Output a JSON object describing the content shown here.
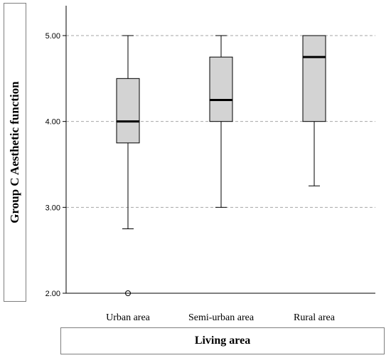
{
  "chart_data": {
    "type": "boxplot",
    "xlabel": "Living area",
    "ylabel": "Group C Aesthetic function",
    "ylim": [
      2.0,
      5.0
    ],
    "yticks": [
      "2.00",
      "3.00",
      "4.00",
      "5.00"
    ],
    "grid": "horizontal dashed at 3.00, 4.00, 5.00",
    "categories": [
      "Urban area",
      "Semi-urban area",
      "Rural area"
    ],
    "boxes": [
      {
        "category": "Urban area",
        "whisker_low": 2.75,
        "q1": 3.75,
        "median": 4.0,
        "q3": 4.5,
        "whisker_high": 5.0,
        "outliers": [
          2.0
        ]
      },
      {
        "category": "Semi-urban area",
        "whisker_low": 3.0,
        "q1": 4.0,
        "median": 4.25,
        "q3": 4.75,
        "whisker_high": 5.0,
        "outliers": []
      },
      {
        "category": "Rural area",
        "whisker_low": 3.25,
        "q1": 4.0,
        "median": 4.75,
        "q3": 5.0,
        "whisker_high": 5.0,
        "outliers": []
      }
    ],
    "colors": {
      "box_fill": "#d3d3d3",
      "stroke": "#000000",
      "grid": "#a6a6a6"
    }
  }
}
